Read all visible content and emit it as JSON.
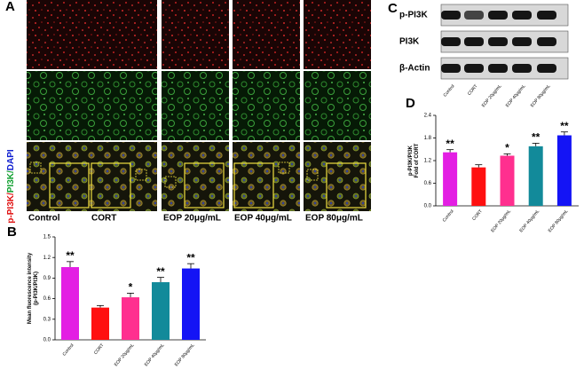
{
  "panels": {
    "a": "A",
    "b": "B",
    "c": "C",
    "d": "D"
  },
  "figure_a": {
    "stain_parts": [
      "p-PI3K/",
      "PI3K/",
      "DAPI"
    ],
    "columns": [
      "Control",
      "CORT",
      "EOP 20μg/mL",
      "EOP 40μg/mL",
      "EOP 80μg/mL"
    ]
  },
  "blot": {
    "rows": [
      "p-PI3K",
      "PI3K",
      "β-Actin"
    ],
    "lanes": [
      "Control",
      "CORT",
      "EOP 20μg/mL",
      "EOP 40μg/mL",
      "EOP 80μg/mL"
    ]
  },
  "chart_data": [
    {
      "type": "bar",
      "panel": "B",
      "ylabel": [
        "Mean fluorescence intensity",
        "(p-PI3K/PI3K)"
      ],
      "categories": [
        "Control",
        "CORT",
        "EOP 20μg/mL",
        "EOP 40μg/mL",
        "EOP 80μg/mL"
      ],
      "values": [
        1.06,
        0.47,
        0.62,
        0.84,
        1.04
      ],
      "errors": [
        0.08,
        0.03,
        0.06,
        0.07,
        0.07
      ],
      "annotations": [
        "**",
        null,
        "*",
        "**",
        "**"
      ],
      "colors": [
        "#e31ee3",
        "#ff1010",
        "#ff2f8f",
        "#128a9a",
        "#1414f5"
      ],
      "ylim": [
        0,
        1.5
      ],
      "yticks": [
        {
          "value": 0,
          "label": "0.0"
        },
        {
          "value": 0.3,
          "label": "0.3"
        },
        {
          "value": 0.6,
          "label": "0.6"
        },
        {
          "value": 0.9,
          "label": "0.9"
        },
        {
          "value": 1.2,
          "label": "1.2"
        },
        {
          "value": 1.5,
          "label": "1.5"
        }
      ]
    },
    {
      "type": "bar",
      "panel": "D",
      "ylabel": [
        "p-PI3K/PI3K",
        "Fold of CORT"
      ],
      "categories": [
        "Control",
        "CORT",
        "EOP 20μg/mL",
        "EOP 40μg/mL",
        "EOP 80μg/mL"
      ],
      "values": [
        1.42,
        1.02,
        1.33,
        1.58,
        1.87
      ],
      "errors": [
        0.07,
        0.07,
        0.05,
        0.08,
        0.09
      ],
      "annotations": [
        "**",
        null,
        "*",
        "**",
        "**"
      ],
      "colors": [
        "#e31ee3",
        "#ff1010",
        "#ff2f8f",
        "#128a9a",
        "#1414f5"
      ],
      "ylim": [
        0,
        2.4
      ],
      "yticks": [
        {
          "value": 0,
          "label": "0.0"
        },
        {
          "value": 0.6,
          "label": "0.6"
        },
        {
          "value": 1.2,
          "label": "1.2"
        },
        {
          "value": 1.8,
          "label": "1.8"
        },
        {
          "value": 2.4,
          "label": "2.4"
        }
      ]
    }
  ]
}
